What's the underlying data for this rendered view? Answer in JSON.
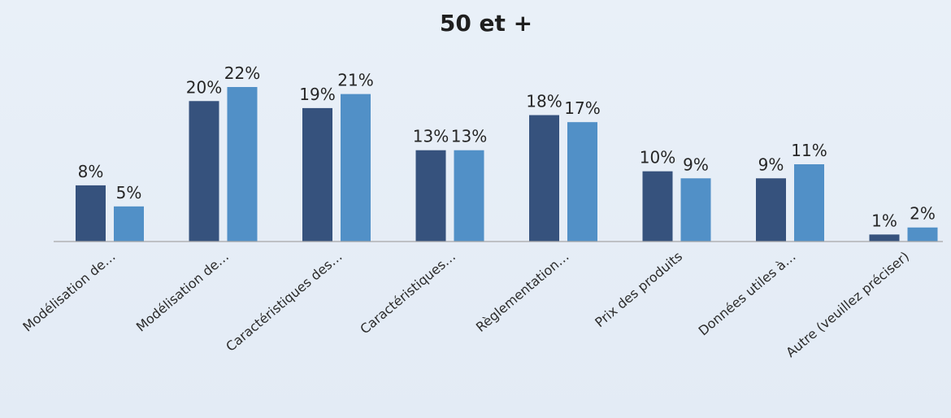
{
  "chart_data": {
    "type": "bar",
    "title": "50 et +",
    "categories": [
      "Modélisation de…",
      "Modélisation de…",
      "Caractéristiques des…",
      "Caractéristiques…",
      "Règlementation…",
      "Prix des produits",
      "Données utiles à…",
      "Autre (veuillez préciser)"
    ],
    "series": [
      {
        "values": [
          8,
          20,
          19,
          13,
          18,
          10,
          9,
          1
        ],
        "labels": [
          "8%",
          "20%",
          "19%",
          "13%",
          "18%",
          "10%",
          "9%",
          "1%"
        ],
        "color": "#36527d"
      },
      {
        "values": [
          5,
          22,
          21,
          13,
          17,
          9,
          11,
          2
        ],
        "labels": [
          "5%",
          "22%",
          "21%",
          "13%",
          "17%",
          "9%",
          "11%",
          "2%"
        ],
        "color": "#5190c7"
      }
    ],
    "ylim": [
      0,
      22
    ],
    "unit": "%",
    "grid": false,
    "legend": "none"
  }
}
